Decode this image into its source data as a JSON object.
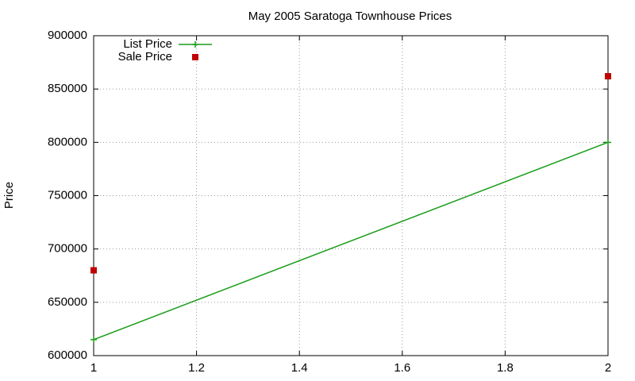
{
  "chart_data": {
    "type": "line",
    "title": "May 2005 Saratoga Townhouse Prices",
    "y_label": "Price",
    "x": [
      1,
      2
    ],
    "series": [
      {
        "name": "List Price",
        "color": "#1a9e1a",
        "style": "linespoints",
        "values": [
          615000,
          800000
        ]
      },
      {
        "name": "Sale Price",
        "color": "#c00000",
        "style": "points",
        "values": [
          680000,
          862000
        ]
      }
    ],
    "xlim": [
      1,
      2
    ],
    "xticks": [
      1,
      1.2,
      1.4,
      1.6,
      1.8,
      2
    ],
    "ylim": [
      600000,
      900000
    ],
    "yticks": [
      600000,
      650000,
      700000,
      750000,
      800000,
      850000,
      900000
    ],
    "grid": true,
    "legend": "top-left"
  }
}
